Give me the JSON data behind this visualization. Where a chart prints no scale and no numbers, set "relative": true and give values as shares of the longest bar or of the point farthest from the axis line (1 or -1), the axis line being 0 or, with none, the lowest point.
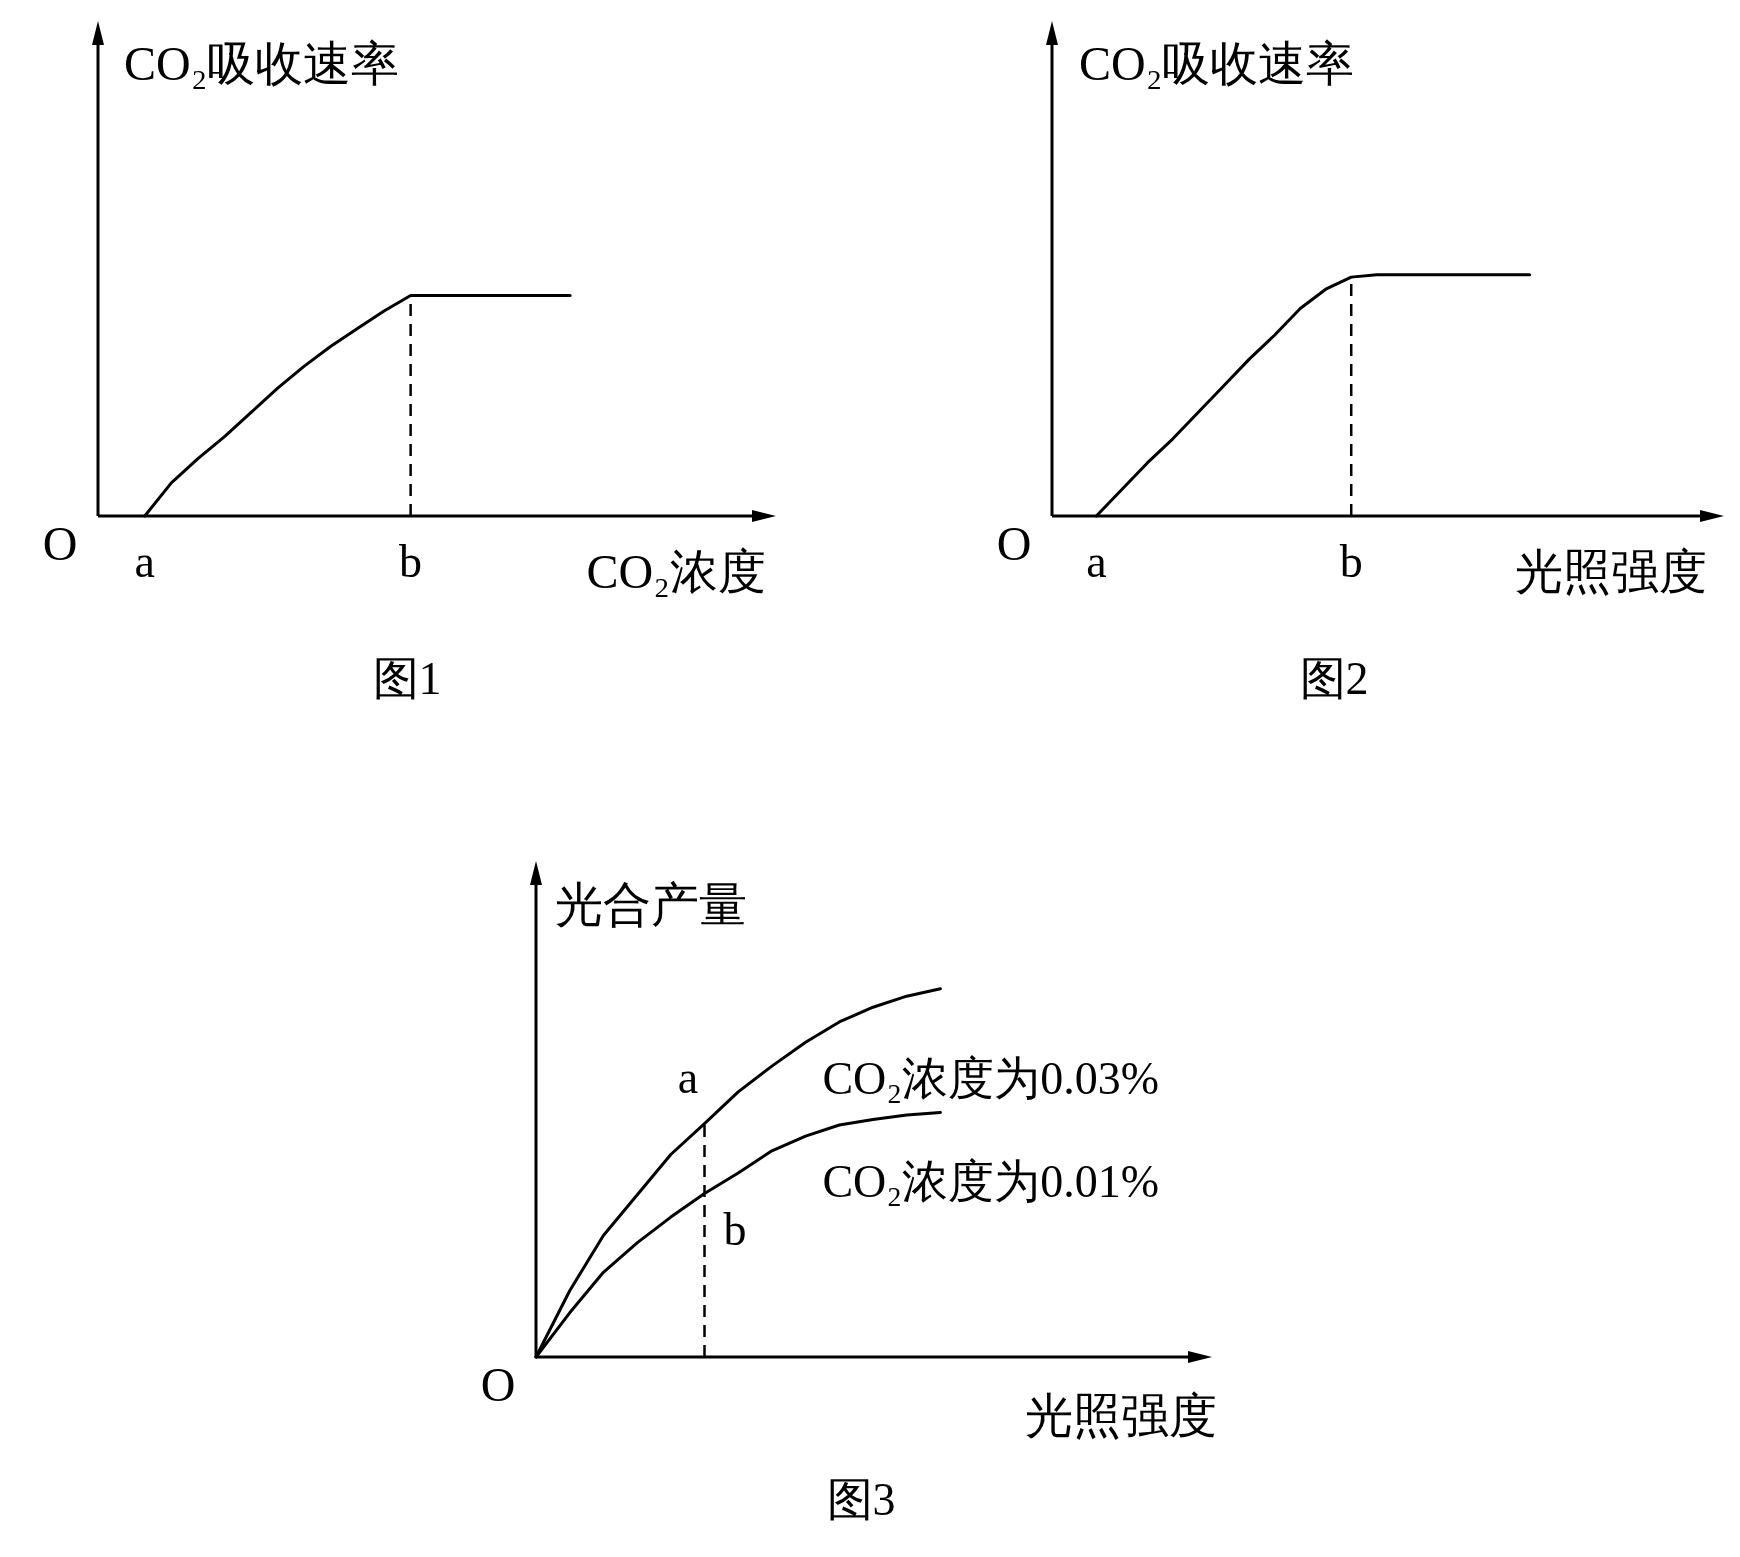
{
  "chart_data": [
    {
      "type": "line",
      "title": "图1",
      "xlabel": "CO₂浓度",
      "ylabel": "CO₂吸收速率",
      "relative": true,
      "categories": [
        "a",
        null,
        null,
        null,
        null,
        null,
        null,
        null,
        null,
        null,
        "b",
        null,
        null,
        null,
        null,
        null,
        null
      ],
      "series": [
        {
          "color": "#000000",
          "values": [
            0,
            0.15,
            0.26,
            0.36,
            0.47,
            0.58,
            0.68,
            0.77,
            0.85,
            0.93,
            1,
            1,
            1,
            1,
            1,
            1,
            1
          ]
        }
      ],
      "ref_lines": [
        {
          "axis": "x",
          "value": "b",
          "line_style": "dashed"
        }
      ],
      "annotations": [
        "O"
      ]
    },
    {
      "type": "line",
      "title": "图2",
      "xlabel": "光照强度",
      "ylabel": "CO₂吸收速率",
      "relative": true,
      "categories": [
        "a",
        null,
        null,
        null,
        null,
        null,
        null,
        null,
        null,
        null,
        "b",
        null,
        null,
        null,
        null,
        null,
        null,
        null
      ],
      "series": [
        {
          "color": "#000000",
          "values": [
            0,
            0.11,
            0.22,
            0.32,
            0.43,
            0.54,
            0.65,
            0.75,
            0.86,
            0.94,
            0.99,
            1,
            1,
            1,
            1,
            1,
            1,
            1
          ]
        }
      ],
      "ref_lines": [
        {
          "axis": "x",
          "value": "b",
          "line_style": "dashed"
        }
      ],
      "annotations": [
        "O"
      ]
    },
    {
      "type": "line",
      "title": "图3",
      "xlabel": "光照强度",
      "ylabel": "光合产量",
      "relative": true,
      "categories": [
        null,
        null,
        null,
        null,
        null,
        null,
        null,
        null,
        null,
        null,
        null,
        null,
        null
      ],
      "series": [
        {
          "name": "CO₂浓度为0.03%",
          "color": "#000000",
          "values": [
            0,
            0.18,
            0.33,
            0.44,
            0.55,
            0.634,
            0.72,
            0.79,
            0.855,
            0.91,
            0.95,
            0.98,
            1
          ]
        },
        {
          "name": "CO₂浓度为0.01%",
          "color": "#000000",
          "values": [
            0,
            0.12,
            0.23,
            0.31,
            0.38,
            0.444,
            0.5,
            0.56,
            0.6,
            0.63,
            0.645,
            0.657,
            0.664
          ]
        }
      ],
      "annotations": [
        "O",
        "a",
        "b"
      ]
    }
  ]
}
